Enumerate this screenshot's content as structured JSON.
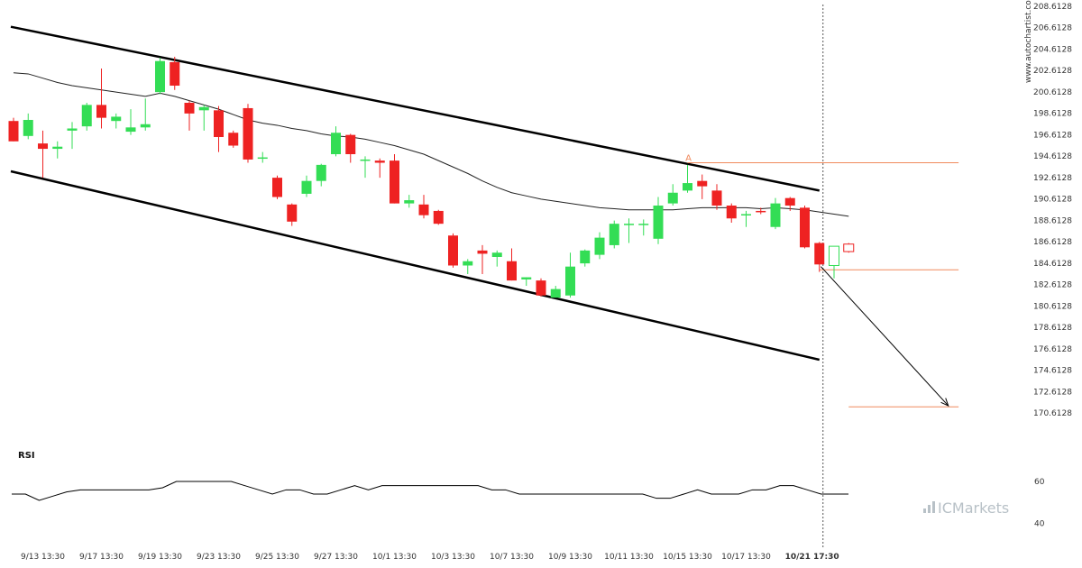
{
  "watermark": "www.autochartist.com",
  "brand": "ICMarkets",
  "rsi_label": "RSI",
  "point_label": "A",
  "colors": {
    "up": "#33dd55",
    "down": "#ee2222",
    "resistance": "#f08a5d",
    "channel": "#000000",
    "ma": "#222222",
    "rsi": "#000000"
  },
  "chart_data": {
    "type": "candlestick",
    "price_axis": {
      "ylim": [
        169.1128,
        208.6128
      ],
      "ticks": [
        "208.6128",
        "206.6128",
        "204.6128",
        "202.6128",
        "200.6128",
        "198.6128",
        "196.6128",
        "194.6128",
        "192.6128",
        "190.6128",
        "188.6128",
        "186.6128",
        "184.6128",
        "182.6128",
        "180.6128",
        "178.6128",
        "176.6128",
        "174.6128",
        "172.6128",
        "170.6128"
      ]
    },
    "time_axis": {
      "labels": [
        "9/13 13:30",
        "9/17 13:30",
        "9/19 13:30",
        "9/23 13:30",
        "9/25 13:30",
        "9/27 13:30",
        "10/1 13:30",
        "10/3 13:30",
        "10/7 13:30",
        "10/9 13:30",
        "10/11 13:30",
        "10/15 13:30",
        "10/17 13:30",
        "10/21 17:30"
      ],
      "label_index": [
        2,
        6,
        10,
        14,
        18,
        22,
        26,
        30,
        34,
        38,
        42,
        46,
        50,
        54.5
      ],
      "bold_last": true
    },
    "candles": [
      {
        "o": 197.9,
        "h": 198.2,
        "l": 196.0,
        "c": 196.0
      },
      {
        "o": 196.5,
        "h": 198.6,
        "l": 196.2,
        "c": 198.0
      },
      {
        "o": 195.8,
        "h": 197.0,
        "l": 192.6,
        "c": 195.3
      },
      {
        "o": 195.3,
        "h": 196.0,
        "l": 194.4,
        "c": 195.5
      },
      {
        "o": 197.0,
        "h": 197.8,
        "l": 195.3,
        "c": 197.2
      },
      {
        "o": 197.4,
        "h": 199.6,
        "l": 197.0,
        "c": 199.4
      },
      {
        "o": 199.4,
        "h": 202.8,
        "l": 197.2,
        "c": 198.2
      },
      {
        "o": 197.9,
        "h": 198.6,
        "l": 197.2,
        "c": 198.3
      },
      {
        "o": 196.9,
        "h": 199.0,
        "l": 196.6,
        "c": 197.3
      },
      {
        "o": 197.3,
        "h": 200.0,
        "l": 197.0,
        "c": 197.6
      },
      {
        "o": 200.6,
        "h": 203.8,
        "l": 200.4,
        "c": 203.5
      },
      {
        "o": 203.4,
        "h": 203.9,
        "l": 200.8,
        "c": 201.2
      },
      {
        "o": 199.6,
        "h": 199.8,
        "l": 197.0,
        "c": 198.6
      },
      {
        "o": 198.9,
        "h": 199.4,
        "l": 197.0,
        "c": 199.2
      },
      {
        "o": 198.9,
        "h": 199.3,
        "l": 195.0,
        "c": 196.4
      },
      {
        "o": 196.8,
        "h": 197.0,
        "l": 195.4,
        "c": 195.6
      },
      {
        "o": 199.1,
        "h": 199.5,
        "l": 194.0,
        "c": 194.3
      },
      {
        "o": 194.5,
        "h": 195.0,
        "l": 194.0,
        "c": 194.5
      },
      {
        "o": 192.6,
        "h": 192.8,
        "l": 190.6,
        "c": 190.8
      },
      {
        "o": 190.1,
        "h": 190.2,
        "l": 188.1,
        "c": 188.5
      },
      {
        "o": 191.1,
        "h": 192.8,
        "l": 190.8,
        "c": 192.3
      },
      {
        "o": 192.3,
        "h": 193.9,
        "l": 191.8,
        "c": 193.8
      },
      {
        "o": 194.8,
        "h": 197.4,
        "l": 194.6,
        "c": 196.8
      },
      {
        "o": 196.6,
        "h": 196.7,
        "l": 194.0,
        "c": 194.8
      },
      {
        "o": 194.3,
        "h": 194.6,
        "l": 192.6,
        "c": 194.3
      },
      {
        "o": 194.2,
        "h": 194.4,
        "l": 192.6,
        "c": 194.0
      },
      {
        "o": 194.2,
        "h": 194.8,
        "l": 190.2,
        "c": 190.2
      },
      {
        "o": 190.2,
        "h": 191.0,
        "l": 189.8,
        "c": 190.5
      },
      {
        "o": 190.1,
        "h": 191.0,
        "l": 188.8,
        "c": 189.1
      },
      {
        "o": 189.5,
        "h": 189.6,
        "l": 188.2,
        "c": 188.3
      },
      {
        "o": 187.2,
        "h": 187.4,
        "l": 184.2,
        "c": 184.4
      },
      {
        "o": 184.4,
        "h": 185.0,
        "l": 183.6,
        "c": 184.8
      },
      {
        "o": 185.8,
        "h": 186.3,
        "l": 183.6,
        "c": 185.5
      },
      {
        "o": 185.2,
        "h": 185.8,
        "l": 184.3,
        "c": 185.6
      },
      {
        "o": 184.8,
        "h": 186.0,
        "l": 183.0,
        "c": 183.0
      },
      {
        "o": 183.1,
        "h": 183.3,
        "l": 182.5,
        "c": 183.3
      },
      {
        "o": 183.0,
        "h": 183.2,
        "l": 181.5,
        "c": 181.6
      },
      {
        "o": 181.4,
        "h": 182.5,
        "l": 181.4,
        "c": 182.2
      },
      {
        "o": 181.6,
        "h": 185.6,
        "l": 181.4,
        "c": 184.3
      },
      {
        "o": 184.6,
        "h": 185.9,
        "l": 184.3,
        "c": 185.8
      },
      {
        "o": 185.4,
        "h": 187.5,
        "l": 185.0,
        "c": 187.0
      },
      {
        "o": 186.3,
        "h": 188.6,
        "l": 186.0,
        "c": 188.3
      },
      {
        "o": 188.3,
        "h": 188.8,
        "l": 186.5,
        "c": 188.3
      },
      {
        "o": 188.2,
        "h": 188.7,
        "l": 187.2,
        "c": 188.3
      },
      {
        "o": 186.9,
        "h": 190.8,
        "l": 186.4,
        "c": 190.0
      },
      {
        "o": 190.2,
        "h": 192.0,
        "l": 190.0,
        "c": 191.2
      },
      {
        "o": 191.4,
        "h": 193.8,
        "l": 191.2,
        "c": 192.1
      },
      {
        "o": 192.3,
        "h": 192.9,
        "l": 190.6,
        "c": 191.8
      },
      {
        "o": 191.4,
        "h": 192.0,
        "l": 189.6,
        "c": 190.0
      },
      {
        "o": 190.0,
        "h": 190.2,
        "l": 188.4,
        "c": 188.8
      },
      {
        "o": 189.2,
        "h": 189.5,
        "l": 188.0,
        "c": 189.2
      },
      {
        "o": 189.5,
        "h": 189.8,
        "l": 189.2,
        "c": 189.4
      },
      {
        "o": 188.0,
        "h": 190.7,
        "l": 187.8,
        "c": 190.2
      },
      {
        "o": 190.7,
        "h": 190.8,
        "l": 189.5,
        "c": 190.0
      },
      {
        "o": 189.8,
        "h": 190.0,
        "l": 186.0,
        "c": 186.1
      },
      {
        "o": 186.5,
        "h": 186.6,
        "l": 183.8,
        "c": 184.5
      },
      {
        "o": 184.4,
        "h": 186.2,
        "l": 183.2,
        "c": 186.2,
        "hollow": true
      },
      {
        "o": 186.4,
        "h": 186.5,
        "l": 185.6,
        "c": 185.7,
        "hollow": true
      }
    ],
    "moving_average": [
      [
        0,
        202.4
      ],
      [
        1,
        202.3
      ],
      [
        2,
        201.9
      ],
      [
        3,
        201.5
      ],
      [
        4,
        201.2
      ],
      [
        5,
        201.0
      ],
      [
        6,
        200.8
      ],
      [
        7,
        200.6
      ],
      [
        8,
        200.4
      ],
      [
        9,
        200.2
      ],
      [
        10,
        200.5
      ],
      [
        11,
        200.2
      ],
      [
        12,
        199.8
      ],
      [
        13,
        199.4
      ],
      [
        14,
        199.0
      ],
      [
        15,
        198.5
      ],
      [
        16,
        198.0
      ],
      [
        17,
        197.7
      ],
      [
        18,
        197.5
      ],
      [
        19,
        197.2
      ],
      [
        20,
        197.0
      ],
      [
        21,
        196.7
      ],
      [
        22,
        196.5
      ],
      [
        23,
        196.4
      ],
      [
        24,
        196.2
      ],
      [
        25,
        195.9
      ],
      [
        26,
        195.6
      ],
      [
        27,
        195.2
      ],
      [
        28,
        194.8
      ],
      [
        29,
        194.2
      ],
      [
        30,
        193.6
      ],
      [
        31,
        193.0
      ],
      [
        32,
        192.3
      ],
      [
        33,
        191.7
      ],
      [
        34,
        191.2
      ],
      [
        35,
        190.9
      ],
      [
        36,
        190.6
      ],
      [
        37,
        190.4
      ],
      [
        38,
        190.2
      ],
      [
        39,
        190.0
      ],
      [
        40,
        189.8
      ],
      [
        41,
        189.7
      ],
      [
        42,
        189.6
      ],
      [
        43,
        189.6
      ],
      [
        44,
        189.6
      ],
      [
        45,
        189.6
      ],
      [
        46,
        189.7
      ],
      [
        47,
        189.8
      ],
      [
        48,
        189.8
      ],
      [
        49,
        189.8
      ],
      [
        50,
        189.8
      ],
      [
        51,
        189.7
      ],
      [
        52,
        189.8
      ],
      [
        53,
        189.7
      ],
      [
        54,
        189.6
      ],
      [
        55,
        189.4
      ],
      [
        56,
        189.2
      ],
      [
        57,
        189.0
      ]
    ],
    "channel": {
      "upper": [
        [
          0,
          206.7
        ],
        [
          55,
          191.4
        ]
      ],
      "lower": [
        [
          0,
          193.2
        ],
        [
          55,
          175.6
        ]
      ]
    },
    "resistance": {
      "value": 194.0,
      "from_index": 46,
      "to_index": 64.5
    },
    "support": {
      "value": 184.0,
      "from_index": 55,
      "to_index": 64.5
    },
    "target": {
      "value": 171.2,
      "from_index": 57,
      "to_index": 64.5
    },
    "forecast_arrow": {
      "from": [
        55.1,
        184.3
      ],
      "to": [
        63.8,
        171.3
      ]
    },
    "current_index": 55,
    "rsi": {
      "yticks": [
        "60",
        "40"
      ],
      "ylim": [
        36,
        66
      ],
      "values": [
        54,
        54,
        51,
        53,
        55,
        56,
        56,
        56,
        56,
        56,
        56,
        57,
        60,
        60,
        60,
        60,
        60,
        58,
        56,
        54,
        56,
        56,
        54,
        54,
        56,
        58,
        56,
        58,
        58,
        58,
        58,
        58,
        58,
        58,
        58,
        56,
        56,
        54,
        54,
        54,
        54,
        54,
        54,
        54,
        54,
        54,
        54,
        52,
        52,
        54,
        56,
        54,
        54,
        54,
        56,
        56,
        58,
        58,
        56,
        54,
        54,
        54
      ]
    }
  }
}
